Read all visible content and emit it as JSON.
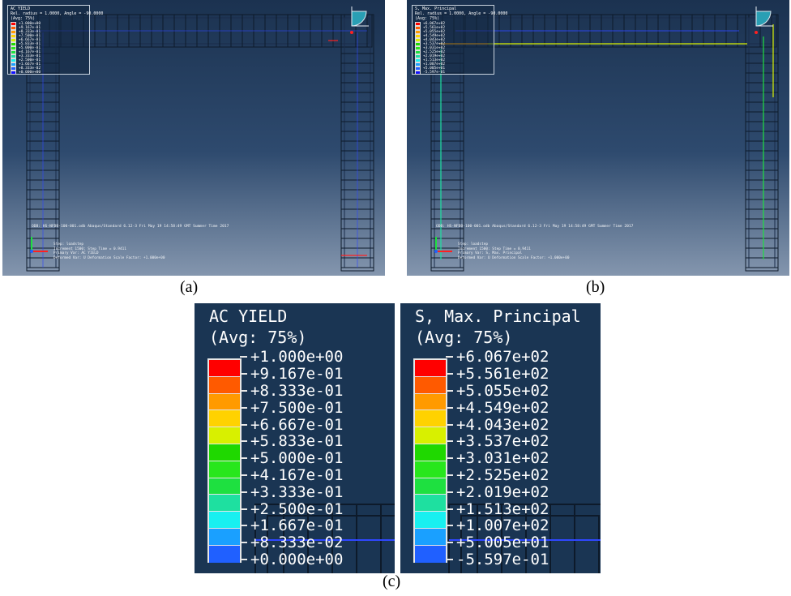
{
  "panels": {
    "a": {
      "legend_title": "AC YIELD",
      "legend_line2": "Rel. radius = 1.0000, Angle = -90.0000",
      "legend_avg": "(Avg: 75%)",
      "odb_line": "ODB: HS-NFDB-100-001.odb   Abaqus/Standard 6.12-3   Fri May 19 14:58:49 GMT Summer Time 2017",
      "step_line1": "Step: loadstep",
      "step_line2": "Increment   1500: Step Time =   0.9411",
      "step_line3": "Primary Var: AC YIELD",
      "step_line4": "Deformed Var: U   Deformation Scale Factor: +1.000e+00",
      "caption": "(a)"
    },
    "b": {
      "legend_title": "S, Max. Principal",
      "legend_line2": "Rel. radius = 1.0000, Angle = -90.0000",
      "legend_avg": "(Avg: 75%)",
      "odb_line": "ODB: HS-NFDB-100-001.odb   Abaqus/Standard 6.12-3   Fri May 19 14:58:49 GMT Summer Time 2017",
      "step_line1": "Step: loadstep",
      "step_line2": "Increment   1500: Step Time =   0.9411",
      "step_line3": "Primary Var: S, Max. Principal",
      "step_line4": "Deformed Var: U   Deformation Scale Factor: +1.000e+00",
      "caption": "(b)"
    }
  },
  "zoom": {
    "caption": "(c)",
    "ac_yield": {
      "title": "AC YIELD",
      "avg": "(Avg: 75%)",
      "values": [
        "+1.000e+00",
        "+9.167e-01",
        "+8.333e-01",
        "+7.500e-01",
        "+6.667e-01",
        "+5.833e-01",
        "+5.000e-01",
        "+4.167e-01",
        "+3.333e-01",
        "+2.500e-01",
        "+1.667e-01",
        "+8.333e-02",
        "+0.000e+00"
      ]
    },
    "max_principal": {
      "title": "S, Max. Principal",
      "avg": "(Avg: 75%)",
      "values": [
        "+6.067e+02",
        "+5.561e+02",
        "+5.055e+02",
        "+4.549e+02",
        "+4.043e+02",
        "+3.537e+02",
        "+3.031e+02",
        "+2.525e+02",
        "+2.019e+02",
        "+1.513e+02",
        "+1.007e+02",
        "+5.005e+01",
        "-5.597e-01"
      ]
    }
  },
  "colors": {
    "contour": [
      "#ff0000",
      "#ff5a00",
      "#ff9a00",
      "#ffd200",
      "#d8f000",
      "#1fd800",
      "#28e61c",
      "#1ee040",
      "#1ee0a0",
      "#19f0f0",
      "#1aa0ff",
      "#2060ff",
      "#1010ff"
    ],
    "viewport_top": "#1b3250",
    "viewport_bottom": "#8496ae",
    "legend_bg": "#1a3553"
  }
}
